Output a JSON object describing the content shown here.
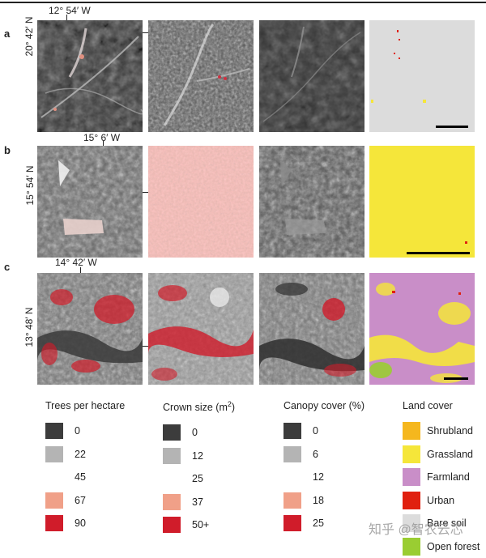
{
  "panels": {
    "a": {
      "letter": "a",
      "lon": "12° 54′ W",
      "lat": "20° 42′ N"
    },
    "b": {
      "letter": "b",
      "lon": "15° 6′ W",
      "lat": "15° 54′ N"
    },
    "c": {
      "letter": "c",
      "lon": "14° 42′ W",
      "lat": "13° 48′ N"
    }
  },
  "legend": {
    "trees": {
      "title": "Trees per hectare",
      "items": [
        {
          "label": "0",
          "color": "#3c3c3c"
        },
        {
          "label": "22",
          "color": "#b4b4b4"
        },
        {
          "label": "45",
          "color": "#ffffff"
        },
        {
          "label": "67",
          "color": "#f0a088"
        },
        {
          "label": "90",
          "color": "#d01c2a"
        }
      ]
    },
    "crown": {
      "title": "Crown size (m",
      "title_sup": "2",
      "title_end": ")",
      "items": [
        {
          "label": "0",
          "color": "#3c3c3c"
        },
        {
          "label": "12",
          "color": "#b4b4b4"
        },
        {
          "label": "25",
          "color": "#ffffff"
        },
        {
          "label": "37",
          "color": "#f0a088"
        },
        {
          "label": "50+",
          "color": "#d01c2a"
        }
      ]
    },
    "canopy": {
      "title": "Canopy cover (%)",
      "items": [
        {
          "label": "0",
          "color": "#3c3c3c"
        },
        {
          "label": "6",
          "color": "#b4b4b4"
        },
        {
          "label": "12",
          "color": "#ffffff"
        },
        {
          "label": "18",
          "color": "#f0a088"
        },
        {
          "label": "25",
          "color": "#d01c2a"
        }
      ]
    },
    "landcover": {
      "title": "Land cover",
      "items": [
        {
          "label": "Shrubland",
          "color": "#f5b71e"
        },
        {
          "label": "Grassland",
          "color": "#f5e63a"
        },
        {
          "label": "Farmland",
          "color": "#c98ec8"
        },
        {
          "label": "Urban",
          "color": "#e0200f"
        },
        {
          "label": "Bare soil",
          "color": "#dcdcdc"
        },
        {
          "label": "Open forest",
          "color": "#9acd32"
        }
      ]
    }
  },
  "watermark": "知乎 @智农云芯"
}
